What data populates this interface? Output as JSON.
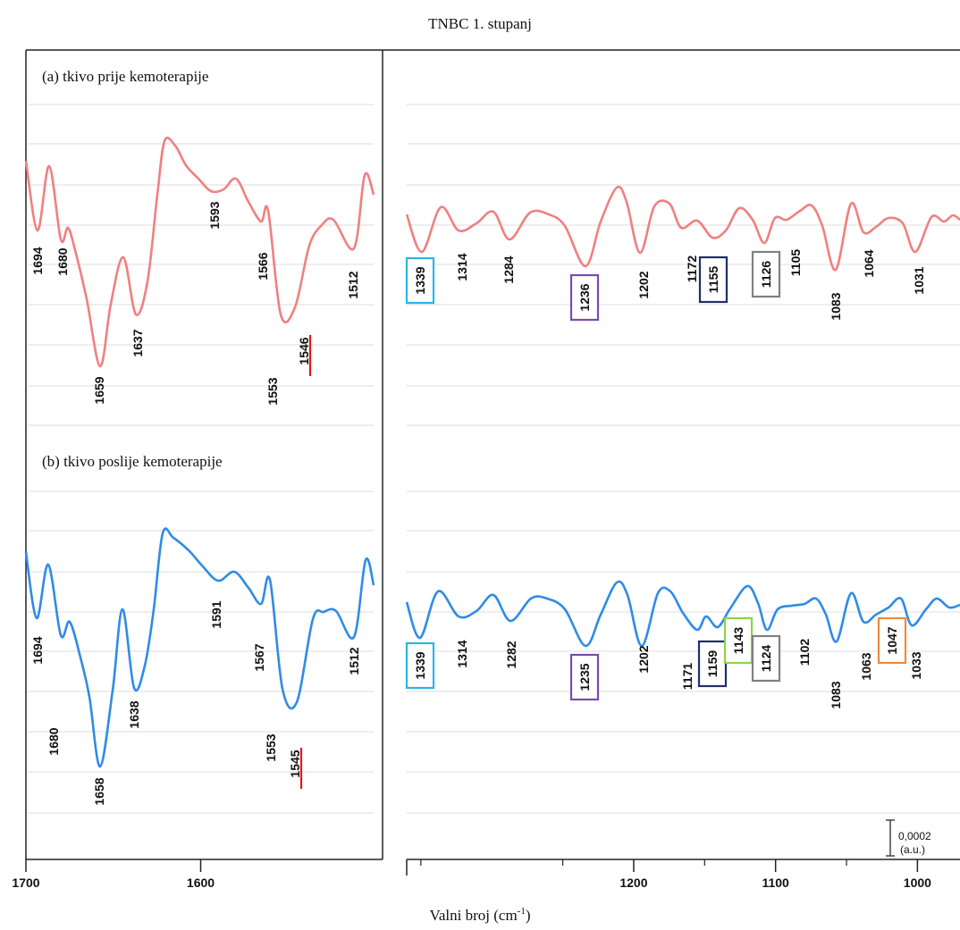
{
  "chart_data": {
    "type": "line",
    "title": "TNBC 1. stupanj",
    "xlabel": "Valni broj (cm",
    "xlabel_sup": "-1",
    "xlabel_end": ")",
    "x_reversed": true,
    "grid": true,
    "scale_bar": {
      "value": "0,0002",
      "unit": "(a.u.)"
    },
    "left_axis": {
      "xlim": [
        1700,
        1500
      ],
      "ticks": [
        1700,
        1600
      ]
    },
    "right_axis": {
      "xlim": [
        1360,
        970
      ],
      "ticks": [
        1200,
        1100,
        1000
      ],
      "minor_ticks": [
        1350,
        1250,
        1150,
        1050
      ]
    },
    "panels": [
      {
        "label": "(a) tkivo prije kemoterapije",
        "color": "#f08080",
        "left_peaks": [
          "1694",
          "1680",
          "1659",
          "1637",
          "1593",
          "1566",
          "1553",
          "1546",
          "1512"
        ],
        "right_peaks": [
          "1339",
          "1314",
          "1284",
          "1236",
          "1202",
          "1172",
          "1155",
          "1126",
          "1105",
          "1083",
          "1064",
          "1031"
        ],
        "boxed": [
          {
            "label": "1339",
            "color": "#29b6e8"
          },
          {
            "label": "1236",
            "color": "#7b4bb0"
          },
          {
            "label": "1155",
            "color": "#1f2f6b"
          },
          {
            "label": "1126",
            "color": "#808080"
          }
        ],
        "marker": "1546"
      },
      {
        "label": "(b) tkivo poslije kemoterapije",
        "color": "#2f8be8",
        "left_peaks": [
          "1694",
          "1680",
          "1658",
          "1638",
          "1591",
          "1567",
          "1553",
          "1545",
          "1512"
        ],
        "right_peaks": [
          "1339",
          "1314",
          "1282",
          "1235",
          "1202",
          "1171",
          "1159",
          "1143",
          "1124",
          "1102",
          "1083",
          "1063",
          "1047",
          "1033"
        ],
        "boxed": [
          {
            "label": "1339",
            "color": "#29b6e8"
          },
          {
            "label": "1235",
            "color": "#7b4bb0"
          },
          {
            "label": "1159",
            "color": "#1f2f6b"
          },
          {
            "label": "1143",
            "color": "#8bd44a"
          },
          {
            "label": "1124",
            "color": "#808080"
          },
          {
            "label": "1047",
            "color": "#f08a3c"
          }
        ],
        "marker": "1545"
      }
    ]
  }
}
